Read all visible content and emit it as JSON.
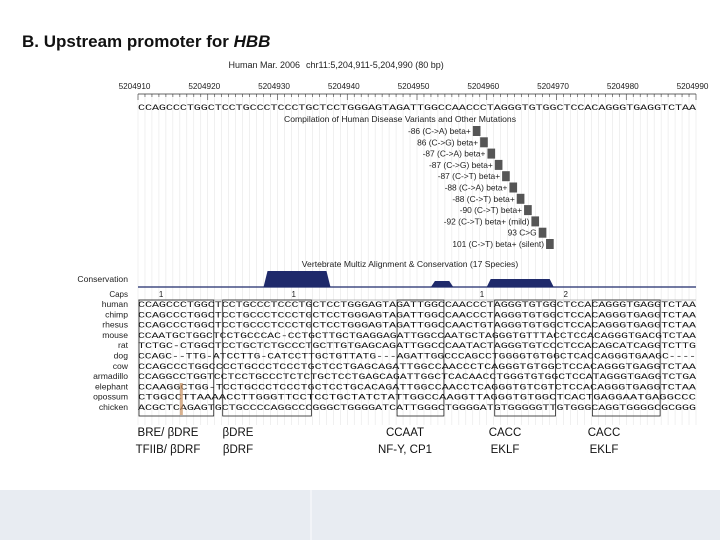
{
  "title": {
    "prefix": "B. Upstream promoter for ",
    "gene": "HBB"
  },
  "header": {
    "assembly": "Human Mar. 2006",
    "position": "chr11:5,204,911-5,204,990 (80 bp)"
  },
  "ruler_ticks": [
    "5204910",
    "5204920",
    "5204930",
    "5204940",
    "5204950",
    "5204960",
    "5204970",
    "5204980",
    "5204990"
  ],
  "reference_sequence": "CCAGCCCTGGCTCCTGCCCTCCCTGCTCCTGGGAGTAGATTGGCCAACCCTAGGGTGTGGCTCCACAGGGTGAGGTCTAA",
  "mutations_track": {
    "title": "Compilation of Human Disease Variants and Other Mutations",
    "items": [
      "-86 (C->A) beta+",
      "86 (C->G) beta+",
      "-87 (C->A) beta+",
      "-87 (C->G) beta+",
      "-87 (C->T) beta+",
      "-88 (C->A) beta+",
      "-88 (C->T) beta+",
      "-90 (C->T) beta+",
      "-92 (C->T) beta+ (mild)",
      "93 C>G",
      "101 (C->T) beta+ (silent)"
    ]
  },
  "conservation_track": {
    "title": "Vertebrate Multiz Alignment & Conservation (17 Species)",
    "label": "Conservation",
    "caps_label": "Caps",
    "caps_markers": [
      "1",
      "1",
      "1",
      "2"
    ]
  },
  "species": [
    {
      "name": "human",
      "seq": "CCAGCCCTGGCTCCTGCCCTCCCTGCTCCTGGGAGTAGATTGGCCAACCCTAGGGTGTGGCTCCACAGGGTGAGGTCTAA"
    },
    {
      "name": "chimp",
      "seq": "CCAGCCCTGGCTCCTGCCCTCCCTGCTCCTGGGAGTAGATTGGCCAACCCTAGGGTGTGGCTCCACAGGGTGAGGTCTAA"
    },
    {
      "name": "rhesus",
      "seq": "CCAGCCCTGGCTCCTGCCCTCCCTGCTCCTGGGAGTAGATTGGCCAACTGTAGGGTGTGGCTCCACAGGGTGAGGTCTAA"
    },
    {
      "name": "mouse",
      "seq": "CCAATGCTGGCTCCTGCCCAC-CCTGCTTGCTGAGGAGATTGGCCAATGCTAGGGTGTTTACCTCCACAGGGTGACGTCTAA"
    },
    {
      "name": "rat",
      "seq": "TCTGC-CTGGCTCCTGCTCTGCCCTGCTTGTGAGCAGATTGGCCCAATACTAGGGTGTCCCTCCACAGCATCAGGTCTTG"
    },
    {
      "name": "dog",
      "seq": "CCAGC--TTG-ATCCTTG-CATCCTTGCTGTTATG---AGATTGGCCCAGCCTGGGGTGTGGCTCACCAGGGTGAAGC----"
    },
    {
      "name": "cow",
      "seq": "CCAGCCCTGGCCCCTGCCCTCCCTGCTCCTGAGCAGATTGGCCAACCCTCAGGGTGTGGCTCCACAGGGTGAGGTCTAA"
    },
    {
      "name": "armadillo",
      "seq": "CCAGGCCTGGTCCTCCTGCCCTCTCTGCTCCTGAGCAGATTGGCTCACAACCTGGGTGTGGCTCCATAGGGTGAGGTCTGA"
    },
    {
      "name": "elephant",
      "seq": "CCAAGGCTGG-TCCTGCCCTCCCTGCTCCTGCACAGATTGGCCAACCTCAGGGTGTCGTCTCCACAGGGTGAGGTCTAA"
    },
    {
      "name": "opossum",
      "seq": "CTGGCCTTAAAACCTTGGGTTCCTCCTGCTATCTATTGGCCAAGGTTAGGGTGTGGCTCACTGAGGAATGAGGCCC"
    },
    {
      "name": "chicken",
      "seq": "ACGCTCAGAGTGCTGCCCCAGGCCCGGGCTGGGGATCATTGGGCTGGGGATGTGGGGGTTGTGGGCAGGTGGGGCGCGGG"
    }
  ],
  "elements": [
    {
      "line1": "BRE/ βDRE",
      "line2": "TFIIB/ βDRF"
    },
    {
      "line1": "βDRE",
      "line2": "βDRF"
    },
    {
      "line1": "CCAAT",
      "line2": "NF-Y, CP1"
    },
    {
      "line1": "CACC",
      "line2": "EKLF"
    },
    {
      "line1": "CACC",
      "line2": "EKLF"
    }
  ],
  "colors": {
    "conservation": "#1f2a6b",
    "mutation_bar": "#555555",
    "highlight": "#c89060",
    "footer": "#e8ecf2"
  }
}
